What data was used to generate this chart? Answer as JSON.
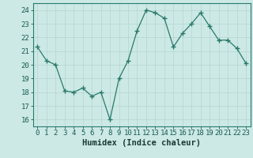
{
  "x": [
    0,
    1,
    2,
    3,
    4,
    5,
    6,
    7,
    8,
    9,
    10,
    11,
    12,
    13,
    14,
    15,
    16,
    17,
    18,
    19,
    20,
    21,
    22,
    23
  ],
  "y": [
    21.3,
    20.3,
    20.0,
    18.1,
    18.0,
    18.3,
    17.7,
    18.0,
    16.0,
    19.0,
    20.3,
    22.5,
    24.0,
    23.8,
    23.4,
    21.3,
    22.3,
    23.0,
    23.8,
    22.8,
    21.8,
    21.8,
    21.2,
    20.1
  ],
  "line_color": "#2a7a6a",
  "marker": "+",
  "marker_size": 4,
  "bg_color": "#cce9e6",
  "grid_color": "#b8d8d4",
  "spine_color": "#2a7a6a",
  "tick_color": "#1a5a50",
  "label_color": "#1a3a35",
  "xlabel": "Humidex (Indice chaleur)",
  "xlabel_fontsize": 7.5,
  "yticks": [
    16,
    17,
    18,
    19,
    20,
    21,
    22,
    23,
    24
  ],
  "xticks": [
    0,
    1,
    2,
    3,
    4,
    5,
    6,
    7,
    8,
    9,
    10,
    11,
    12,
    13,
    14,
    15,
    16,
    17,
    18,
    19,
    20,
    21,
    22,
    23
  ],
  "xlim": [
    -0.5,
    23.5
  ],
  "ylim": [
    15.5,
    24.5
  ],
  "tick_fontsize": 6.5
}
